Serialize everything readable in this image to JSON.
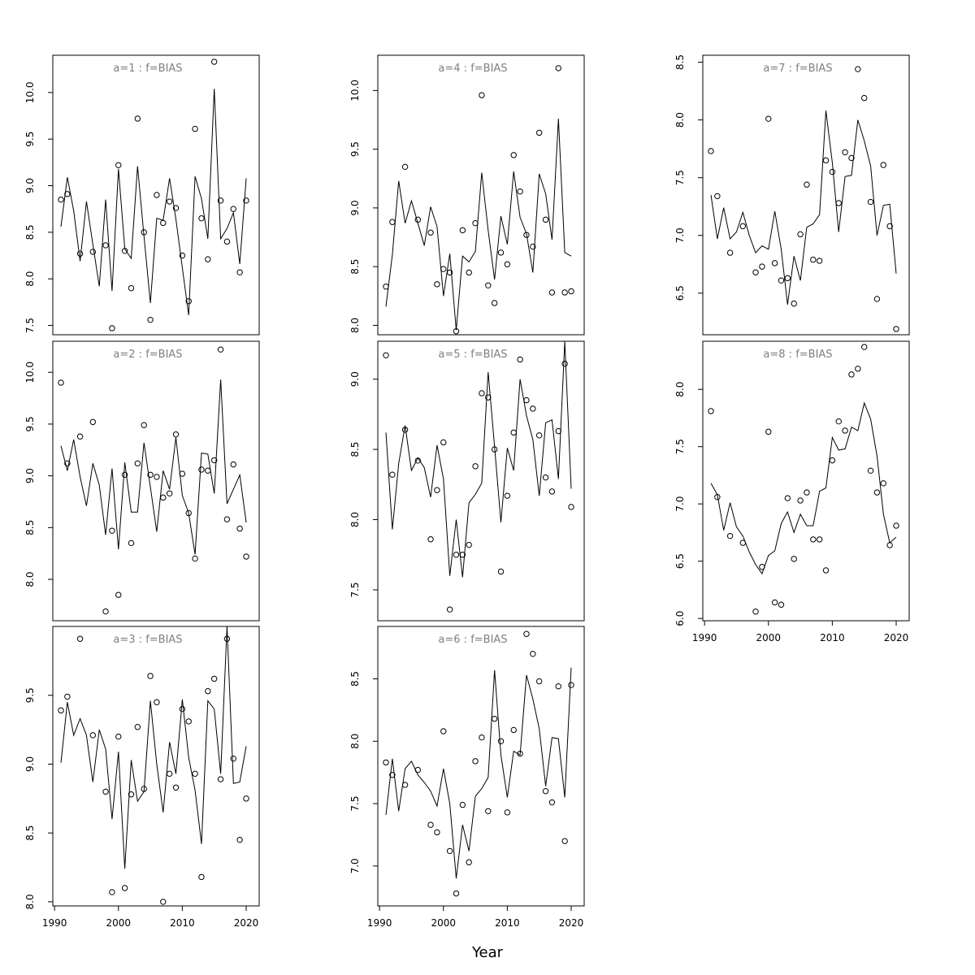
{
  "figure": {
    "xlabel": "Year"
  },
  "chart_data": [
    {
      "type": "line",
      "title": "a=1  :  f=BIAS",
      "xlim": [
        1991,
        2020
      ],
      "ylim": [
        7.4,
        10.4
      ],
      "yticks": [
        7.5,
        8.0,
        8.5,
        9.0,
        9.5,
        10.0
      ],
      "x_ticks_shown": false,
      "x": [
        1991,
        1992,
        1993,
        1994,
        1995,
        1996,
        1997,
        1998,
        1999,
        2000,
        2001,
        2002,
        2003,
        2004,
        2005,
        2006,
        2007,
        2008,
        2009,
        2010,
        2011,
        2012,
        2013,
        2014,
        2015,
        2016,
        2017,
        2018,
        2019,
        2020
      ],
      "series": [
        {
          "style": "points",
          "values": [
            8.85,
            8.91,
            null,
            8.27,
            null,
            8.29,
            null,
            8.36,
            7.47,
            9.22,
            8.3,
            7.9,
            9.72,
            8.5,
            7.56,
            8.9,
            8.6,
            8.83,
            8.76,
            8.25,
            7.76,
            9.61,
            8.65,
            8.21,
            10.33,
            8.84,
            8.4,
            8.75,
            8.07,
            8.84
          ]
        },
        {
          "style": "line",
          "values": [
            8.56,
            9.09,
            8.73,
            8.19,
            8.83,
            8.37,
            7.92,
            8.85,
            7.87,
            9.18,
            8.32,
            8.22,
            9.21,
            8.46,
            7.74,
            8.65,
            8.63,
            9.08,
            8.64,
            8.12,
            7.61,
            9.1,
            8.86,
            8.43,
            10.04,
            8.43,
            8.54,
            8.71,
            8.16,
            9.08
          ]
        }
      ]
    },
    {
      "type": "line",
      "title": "a=2  :  f=BIAS",
      "xlim": [
        1991,
        2020
      ],
      "ylim": [
        7.6,
        10.3
      ],
      "yticks": [
        8.0,
        8.5,
        9.0,
        9.5,
        10.0
      ],
      "x_ticks_shown": false,
      "x": [
        1991,
        1992,
        1993,
        1994,
        1995,
        1996,
        1997,
        1998,
        1999,
        2000,
        2001,
        2002,
        2003,
        2004,
        2005,
        2006,
        2007,
        2008,
        2009,
        2010,
        2011,
        2012,
        2013,
        2014,
        2015,
        2016,
        2017,
        2018,
        2019,
        2020
      ],
      "series": [
        {
          "style": "points",
          "values": [
            9.9,
            9.12,
            null,
            9.38,
            null,
            9.52,
            null,
            7.69,
            8.47,
            7.85,
            9.01,
            8.35,
            9.12,
            9.49,
            9.01,
            8.99,
            8.79,
            8.83,
            9.4,
            9.02,
            8.64,
            8.2,
            9.06,
            9.05,
            9.15,
            10.22,
            8.58,
            9.11,
            8.49,
            8.22
          ]
        },
        {
          "style": "line",
          "values": [
            9.29,
            9.05,
            9.35,
            8.99,
            8.71,
            9.12,
            8.91,
            8.43,
            9.07,
            8.29,
            9.13,
            8.65,
            8.65,
            9.32,
            8.89,
            8.46,
            9.05,
            8.87,
            9.37,
            8.81,
            8.64,
            8.24,
            9.22,
            9.21,
            8.83,
            9.93,
            8.73,
            8.87,
            9.01,
            8.55
          ]
        }
      ]
    },
    {
      "type": "line",
      "title": "a=3  :  f=BIAS",
      "xlim": [
        1991,
        2020
      ],
      "ylim": [
        7.97,
        10.0
      ],
      "yticks": [
        8.0,
        8.5,
        9.0,
        9.5
      ],
      "x_ticks_shown": true,
      "xticks": [
        1990,
        2000,
        2010,
        2020
      ],
      "x": [
        1991,
        1992,
        1993,
        1994,
        1995,
        1996,
        1997,
        1998,
        1999,
        2000,
        2001,
        2002,
        2003,
        2004,
        2005,
        2006,
        2007,
        2008,
        2009,
        2010,
        2011,
        2012,
        2013,
        2014,
        2015,
        2016,
        2017,
        2018,
        2019,
        2020
      ],
      "series": [
        {
          "style": "points",
          "values": [
            9.39,
            9.49,
            null,
            9.91,
            null,
            9.21,
            null,
            8.8,
            8.07,
            9.2,
            8.1,
            8.78,
            9.27,
            8.82,
            9.64,
            9.45,
            8.0,
            8.93,
            8.83,
            9.4,
            9.31,
            8.93,
            8.18,
            9.53,
            9.62,
            8.89,
            9.91,
            9.04,
            8.45,
            8.75
          ]
        },
        {
          "style": "line",
          "values": [
            9.01,
            9.45,
            9.21,
            9.33,
            9.21,
            8.87,
            9.25,
            9.11,
            8.6,
            9.09,
            8.24,
            9.03,
            8.73,
            8.8,
            9.46,
            9.0,
            8.65,
            9.16,
            8.93,
            9.47,
            9.05,
            8.81,
            8.42,
            9.46,
            9.4,
            8.93,
            10.0,
            8.86,
            8.87,
            9.13
          ]
        }
      ]
    },
    {
      "type": "line",
      "title": "a=4  :  f=BIAS",
      "xlim": [
        1991,
        2020
      ],
      "ylim": [
        7.92,
        10.3
      ],
      "yticks": [
        8.0,
        8.5,
        9.0,
        9.5,
        10.0
      ],
      "x_ticks_shown": false,
      "x": [
        1991,
        1992,
        1993,
        1994,
        1995,
        1996,
        1997,
        1998,
        1999,
        2000,
        2001,
        2002,
        2003,
        2004,
        2005,
        2006,
        2007,
        2008,
        2009,
        2010,
        2011,
        2012,
        2013,
        2014,
        2015,
        2016,
        2017,
        2018,
        2019,
        2020
      ],
      "series": [
        {
          "style": "points",
          "values": [
            8.33,
            8.88,
            null,
            9.35,
            null,
            8.9,
            null,
            8.79,
            8.35,
            8.48,
            8.45,
            7.95,
            8.81,
            8.45,
            8.87,
            9.96,
            8.34,
            8.19,
            8.62,
            8.52,
            9.45,
            9.14,
            8.77,
            8.67,
            9.64,
            8.9,
            8.28,
            10.19,
            8.28,
            8.29
          ]
        },
        {
          "style": "line",
          "values": [
            8.16,
            8.6,
            9.23,
            8.87,
            9.06,
            8.87,
            8.68,
            9.01,
            8.84,
            8.25,
            8.61,
            7.96,
            8.59,
            8.54,
            8.63,
            9.3,
            8.81,
            8.39,
            8.93,
            8.69,
            9.31,
            8.92,
            8.78,
            8.45,
            9.29,
            9.12,
            8.73,
            9.76,
            8.62,
            8.59
          ]
        }
      ]
    },
    {
      "type": "line",
      "title": "a=5  :  f=BIAS",
      "xlim": [
        1991,
        2020
      ],
      "ylim": [
        7.28,
        9.27
      ],
      "yticks": [
        7.5,
        8.0,
        8.5,
        9.0
      ],
      "x_ticks_shown": false,
      "x": [
        1991,
        1992,
        1993,
        1994,
        1995,
        1996,
        1997,
        1998,
        1999,
        2000,
        2001,
        2002,
        2003,
        2004,
        2005,
        2006,
        2007,
        2008,
        2009,
        2010,
        2011,
        2012,
        2013,
        2014,
        2015,
        2016,
        2017,
        2018,
        2019,
        2020
      ],
      "series": [
        {
          "style": "points",
          "values": [
            9.17,
            8.32,
            null,
            8.64,
            null,
            8.42,
            null,
            7.86,
            8.21,
            8.55,
            7.36,
            7.75,
            7.75,
            7.82,
            8.38,
            8.9,
            8.87,
            8.5,
            7.63,
            8.17,
            8.62,
            9.14,
            8.85,
            8.79,
            8.6,
            8.3,
            8.2,
            8.63,
            9.11,
            8.09
          ]
        },
        {
          "style": "line",
          "values": [
            8.62,
            7.93,
            8.4,
            8.67,
            8.35,
            8.44,
            8.37,
            8.16,
            8.53,
            8.29,
            7.6,
            8.0,
            7.59,
            8.12,
            8.18,
            8.26,
            9.05,
            8.52,
            7.98,
            8.51,
            8.35,
            9.0,
            8.74,
            8.57,
            8.17,
            8.69,
            8.71,
            8.29,
            9.27,
            8.22
          ]
        }
      ]
    },
    {
      "type": "line",
      "title": "a=6  :  f=BIAS",
      "xlim": [
        1991,
        2020
      ],
      "ylim": [
        6.68,
        8.92
      ],
      "yticks": [
        7.0,
        7.5,
        8.0,
        8.5
      ],
      "x_ticks_shown": true,
      "xticks": [
        1990,
        2000,
        2010,
        2020
      ],
      "x": [
        1991,
        1992,
        1993,
        1994,
        1995,
        1996,
        1997,
        1998,
        1999,
        2000,
        2001,
        2002,
        2003,
        2004,
        2005,
        2006,
        2007,
        2008,
        2009,
        2010,
        2011,
        2012,
        2013,
        2014,
        2015,
        2016,
        2017,
        2018,
        2019,
        2020
      ],
      "series": [
        {
          "style": "points",
          "values": [
            7.83,
            7.73,
            null,
            7.65,
            null,
            7.77,
            null,
            7.33,
            7.27,
            8.08,
            7.12,
            6.78,
            7.49,
            7.03,
            7.84,
            8.03,
            7.44,
            8.18,
            8.0,
            7.43,
            8.09,
            7.9,
            8.86,
            8.7,
            8.48,
            7.6,
            7.51,
            8.44,
            7.2,
            8.45
          ]
        },
        {
          "style": "line",
          "values": [
            7.41,
            7.86,
            7.44,
            7.78,
            7.84,
            7.73,
            7.67,
            7.6,
            7.48,
            7.78,
            7.5,
            6.9,
            7.33,
            7.12,
            7.56,
            7.62,
            7.71,
            8.57,
            7.89,
            7.55,
            7.92,
            7.89,
            8.53,
            8.34,
            8.1,
            7.64,
            8.03,
            8.02,
            7.55,
            8.59
          ]
        }
      ]
    },
    {
      "type": "line",
      "title": "a=7  :  f=BIAS",
      "xlim": [
        1991,
        2020
      ],
      "ylim": [
        6.14,
        8.56
      ],
      "yticks": [
        6.5,
        7.0,
        7.5,
        8.0,
        8.5
      ],
      "x_ticks_shown": false,
      "x": [
        1991,
        1992,
        1993,
        1994,
        1995,
        1996,
        1997,
        1998,
        1999,
        2000,
        2001,
        2002,
        2003,
        2004,
        2005,
        2006,
        2007,
        2008,
        2009,
        2010,
        2011,
        2012,
        2013,
        2014,
        2015,
        2016,
        2017,
        2018,
        2019,
        2020
      ],
      "series": [
        {
          "style": "points",
          "values": [
            7.73,
            7.34,
            null,
            6.85,
            null,
            7.08,
            null,
            6.68,
            6.73,
            8.01,
            6.76,
            6.61,
            6.63,
            6.41,
            7.01,
            7.44,
            6.79,
            6.78,
            7.65,
            7.55,
            7.28,
            7.72,
            7.67,
            8.44,
            8.19,
            7.29,
            6.45,
            7.61,
            7.08,
            6.19
          ]
        },
        {
          "style": "line",
          "values": [
            7.35,
            6.97,
            7.24,
            6.97,
            7.03,
            7.2,
            7.0,
            6.85,
            6.91,
            6.88,
            7.21,
            6.88,
            6.4,
            6.82,
            6.61,
            7.07,
            7.1,
            7.18,
            8.08,
            7.63,
            7.03,
            7.51,
            7.52,
            8.0,
            7.82,
            7.6,
            7.0,
            7.26,
            7.27,
            6.67
          ]
        }
      ]
    },
    {
      "type": "line",
      "title": "a=8  :  f=BIAS",
      "xlim": [
        1991,
        2020
      ],
      "ylim": [
        5.98,
        8.42
      ],
      "yticks": [
        6.0,
        6.5,
        7.0,
        7.5,
        8.0
      ],
      "x_ticks_shown": true,
      "xticks": [
        1990,
        2000,
        2010,
        2020
      ],
      "x": [
        1991,
        1992,
        1993,
        1994,
        1995,
        1996,
        1997,
        1998,
        1999,
        2000,
        2001,
        2002,
        2003,
        2004,
        2005,
        2006,
        2007,
        2008,
        2009,
        2010,
        2011,
        2012,
        2013,
        2014,
        2015,
        2016,
        2017,
        2018,
        2019,
        2020
      ],
      "series": [
        {
          "style": "points",
          "values": [
            7.81,
            7.06,
            null,
            6.72,
            null,
            6.66,
            null,
            6.06,
            6.45,
            7.63,
            6.14,
            6.12,
            7.05,
            6.52,
            7.03,
            7.1,
            6.69,
            6.69,
            6.42,
            7.38,
            7.72,
            7.64,
            8.13,
            8.18,
            8.37,
            7.29,
            7.1,
            7.18,
            6.64,
            6.81
          ]
        },
        {
          "style": "line",
          "values": [
            7.18,
            7.08,
            6.77,
            7.01,
            6.8,
            6.72,
            6.58,
            6.47,
            6.39,
            6.55,
            6.59,
            6.83,
            6.93,
            6.75,
            6.91,
            6.81,
            6.81,
            7.11,
            7.14,
            7.58,
            7.47,
            7.48,
            7.67,
            7.64,
            7.88,
            7.74,
            7.42,
            6.91,
            6.66,
            6.71
          ]
        }
      ]
    }
  ]
}
